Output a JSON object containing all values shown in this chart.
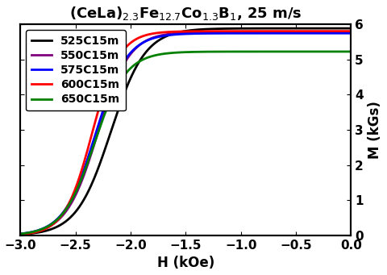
{
  "title": "(CeLa)$_{2.3}$Fe$_{12.7}$Co$_{1.3}$B$_1$, 25 m/s",
  "xlabel": "H (kOe)",
  "ylabel": "M (kGs)",
  "xlim": [
    -3,
    0
  ],
  "ylim": [
    0,
    6
  ],
  "xticks": [
    -3,
    -2.5,
    -2,
    -1.5,
    -1,
    -0.5,
    0
  ],
  "yticks": [
    0,
    1,
    2,
    3,
    4,
    5,
    6
  ],
  "series": [
    {
      "label": "525C15m",
      "color": "#000000",
      "Hc": -2.18,
      "Ms": 5.88,
      "k": 3.2,
      "shift": 0.0
    },
    {
      "label": "550C15m",
      "color": "#800080",
      "Hc": -2.3,
      "Ms": 5.78,
      "k": 3.5,
      "shift": 0.0
    },
    {
      "label": "575C15m",
      "color": "#0000FF",
      "Hc": -2.32,
      "Ms": 5.74,
      "k": 3.5,
      "shift": 0.0
    },
    {
      "label": "600C15m",
      "color": "#FF0000",
      "Hc": -2.35,
      "Ms": 5.8,
      "k": 4.0,
      "shift": 0.0
    },
    {
      "label": "650C15m",
      "color": "#008000",
      "Hc": -2.33,
      "Ms": 5.22,
      "k": 3.5,
      "shift": 0.0
    }
  ],
  "background_color": "#ffffff",
  "title_fontsize": 13,
  "label_fontsize": 12,
  "tick_fontsize": 11,
  "legend_fontsize": 10,
  "linewidth": 2.0
}
